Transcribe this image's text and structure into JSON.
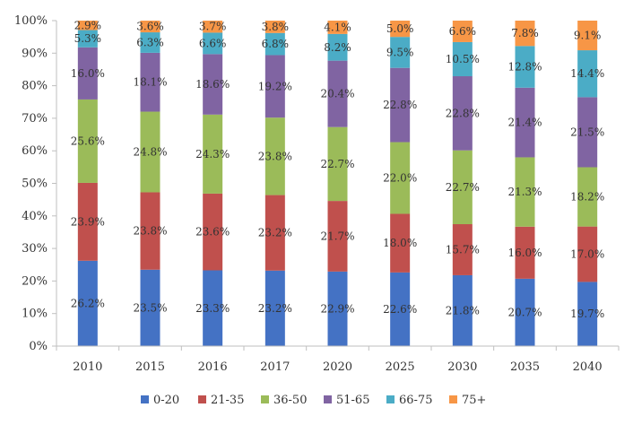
{
  "chart_data": {
    "type": "bar",
    "stacked": true,
    "percent_stacked": true,
    "categories": [
      "2010",
      "2015",
      "2016",
      "2017",
      "2020",
      "2025",
      "2030",
      "2035",
      "2040"
    ],
    "series": [
      {
        "name": "0-20",
        "color": "#4472c4",
        "values": [
          26.2,
          23.5,
          23.3,
          23.2,
          22.9,
          22.6,
          21.8,
          20.7,
          19.7
        ]
      },
      {
        "name": "21-35",
        "color": "#c0504d",
        "values": [
          23.9,
          23.8,
          23.6,
          23.2,
          21.7,
          18.0,
          15.7,
          16.0,
          17.0
        ]
      },
      {
        "name": "36-50",
        "color": "#9bbb59",
        "values": [
          25.6,
          24.8,
          24.3,
          23.8,
          22.7,
          22.0,
          22.7,
          21.3,
          18.2
        ]
      },
      {
        "name": "51-65",
        "color": "#8064a2",
        "values": [
          16.0,
          18.1,
          18.6,
          19.2,
          20.4,
          22.8,
          22.8,
          21.4,
          21.5
        ]
      },
      {
        "name": "66-75",
        "color": "#4bacc6",
        "values": [
          5.3,
          6.3,
          6.6,
          6.8,
          8.2,
          9.5,
          10.5,
          12.8,
          14.4
        ]
      },
      {
        "name": "75+",
        "color": "#f79646",
        "values": [
          2.9,
          3.6,
          3.7,
          3.8,
          4.1,
          5.0,
          6.6,
          7.8,
          9.1
        ]
      }
    ],
    "data_labels": [
      [
        "26.2%",
        "23.5%",
        "23.3%",
        "23.2%",
        "22.9%",
        "22.6%",
        "21.8%",
        "20.7%",
        "19.7%"
      ],
      [
        "23.9%",
        "23.8%",
        "23.6%",
        "23.2%",
        "21.7%",
        "18.0%",
        "15.7%",
        "16.0%",
        "17.0%"
      ],
      [
        "25.6%",
        "24.8%",
        "24.3%",
        "23.8%",
        "22.7%",
        "22.0%",
        "22.7%",
        "21.3%",
        "18.2%"
      ],
      [
        "16.0%",
        "18.1%",
        "18.6%",
        "19.2%",
        "20.4%",
        "22.8%",
        "22.8%",
        "21.4%",
        "21.5%"
      ],
      [
        "5.3%",
        "6.3%",
        "6.6%",
        "6.8%",
        "8.2%",
        "9.5%",
        "10.5%",
        "12.8%",
        "14.4%"
      ],
      [
        "2.9%",
        "3.6%",
        "3.7%",
        "3.8%",
        "4.1%",
        "5.0%",
        "6.6%",
        "7.8%",
        "9.1%"
      ]
    ],
    "yaxis": {
      "ticks": [
        0,
        10,
        20,
        30,
        40,
        50,
        60,
        70,
        80,
        90,
        100
      ],
      "tick_labels": [
        "0%",
        "10%",
        "20%",
        "30%",
        "40%",
        "50%",
        "60%",
        "70%",
        "80%",
        "90%",
        "100%"
      ]
    },
    "ylim": [
      0,
      100
    ],
    "title": "",
    "xlabel": "",
    "ylabel": "",
    "grid": false,
    "legend_position": "bottom"
  }
}
